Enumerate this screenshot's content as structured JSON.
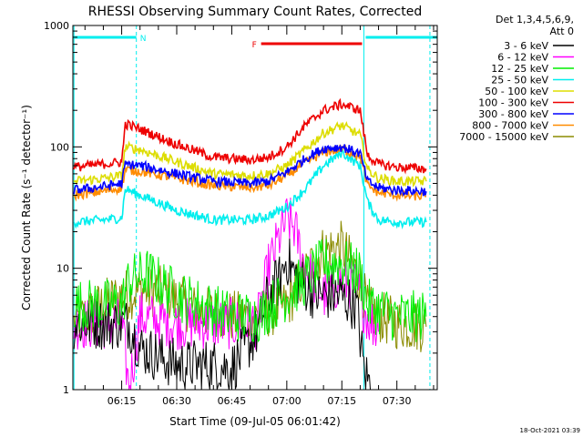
{
  "title": "RHESSI Observing Summary Count Rates, Corrected",
  "timestamp": "18-Oct-2021 03:39",
  "legend": {
    "header_line1": "Det 1,3,4,5,6,9,",
    "header_line2": "Att 0"
  },
  "colors": {
    "ch_3_6": "#000000",
    "ch_6_12": "#ff00ff",
    "ch_12_25": "#00ee00",
    "ch_25_50": "#00eeee",
    "ch_50_100": "#dddd00",
    "ch_100_300": "#ee0000",
    "ch_300_800": "#0000ff",
    "ch_800_7000": "#ff8c00",
    "ch_7000_15000": "#8b8b00",
    "flag_N": "#00eeee",
    "flag_F": "#ee0000"
  },
  "chart_data": {
    "type": "line",
    "title": "RHESSI Observing Summary Count Rates, Corrected",
    "xlabel": "Start Time (09-Jul-05 06:01:42)",
    "ylabel": "Corrected Count Rate (s⁻¹ detector⁻¹)",
    "yscale": "log",
    "ylim": [
      1,
      1000
    ],
    "xlim": [
      "06:01:42",
      "07:41:00"
    ],
    "x_ticks": [
      "06:15",
      "06:30",
      "06:45",
      "07:00",
      "07:15",
      "07:30"
    ],
    "y_ticks": [
      "1",
      "10",
      "100",
      "1000"
    ],
    "flags": [
      {
        "label": "N",
        "segments": [
          [
            "06:01:42",
            "06:19:00"
          ],
          [
            "07:21:30",
            "07:41:00"
          ]
        ]
      },
      {
        "label": "F",
        "segments": [
          [
            "06:53:00",
            "07:20:30"
          ]
        ]
      }
    ],
    "vertical_markers": [
      {
        "time": "06:19:00",
        "style": "dashed"
      },
      {
        "time": "07:21:00",
        "style": "solid"
      },
      {
        "time": "07:39:00",
        "style": "dashed"
      },
      {
        "time": "06:02:00",
        "style": "solid"
      }
    ],
    "series": [
      {
        "name": "3 - 6 keV",
        "color_key": "ch_3_6",
        "x": [
          "06:02",
          "06:10",
          "06:17",
          "06:20",
          "06:30",
          "06:40",
          "06:45",
          "06:52",
          "06:55",
          "06:58",
          "07:00",
          "07:03",
          "07:08",
          "07:14",
          "07:19",
          "07:21",
          "07:23"
        ],
        "y": [
          3.5,
          3.5,
          3.5,
          2.2,
          1.6,
          1.6,
          1.5,
          3,
          6,
          8,
          12,
          8,
          6,
          6,
          5,
          1.5,
          1
        ]
      },
      {
        "name": "6 - 12 keV",
        "color_key": "ch_6_12",
        "x": [
          "06:02",
          "06:15",
          "06:17",
          "06:20",
          "06:30",
          "06:45",
          "06:52",
          "06:55",
          "06:58",
          "07:00",
          "07:02",
          "07:05",
          "07:10",
          "07:15",
          "07:19",
          "07:22",
          "07:25"
        ],
        "y": [
          3.5,
          3.5,
          1,
          4,
          3.5,
          3.5,
          3.5,
          10,
          18,
          25,
          22,
          10,
          6,
          8,
          7,
          4,
          3
        ]
      },
      {
        "name": "12 - 25 keV",
        "color_key": "ch_12_25",
        "x": [
          "06:02",
          "06:15",
          "06:17",
          "06:22",
          "06:30",
          "06:45",
          "06:52",
          "06:56",
          "07:00",
          "07:05",
          "07:10",
          "07:15",
          "07:20",
          "07:22",
          "07:30",
          "07:38"
        ],
        "y": [
          5,
          5,
          8,
          9,
          6,
          4,
          4,
          5,
          6,
          8,
          11,
          11,
          9,
          5,
          4,
          4
        ]
      },
      {
        "name": "25 - 50 keV",
        "color_key": "ch_25_50",
        "x": [
          "06:02",
          "06:10",
          "06:15",
          "06:16",
          "06:20",
          "06:30",
          "06:40",
          "06:50",
          "06:55",
          "07:00",
          "07:05",
          "07:10",
          "07:15",
          "07:20",
          "07:22",
          "07:25",
          "07:30",
          "07:38"
        ],
        "y": [
          24,
          25,
          26,
          45,
          40,
          30,
          25,
          25,
          27,
          32,
          45,
          70,
          90,
          70,
          35,
          25,
          24,
          24
        ]
      },
      {
        "name": "50 - 100 keV",
        "color_key": "ch_50_100",
        "x": [
          "06:02",
          "06:10",
          "06:15",
          "06:16",
          "06:20",
          "06:30",
          "06:40",
          "06:50",
          "06:55",
          "07:00",
          "07:05",
          "07:10",
          "07:15",
          "07:20",
          "07:22",
          "07:25",
          "07:30",
          "07:38"
        ],
        "y": [
          52,
          55,
          58,
          100,
          95,
          75,
          60,
          58,
          60,
          70,
          95,
          130,
          150,
          125,
          65,
          55,
          52,
          52
        ]
      },
      {
        "name": "100 - 300 keV",
        "color_key": "ch_100_300",
        "x": [
          "06:02",
          "06:10",
          "06:15",
          "06:16",
          "06:20",
          "06:30",
          "06:40",
          "06:50",
          "06:55",
          "07:00",
          "07:05",
          "07:10",
          "07:15",
          "07:20",
          "07:22",
          "07:25",
          "07:30",
          "07:38"
        ],
        "y": [
          68,
          72,
          75,
          155,
          140,
          105,
          82,
          78,
          82,
          100,
          150,
          200,
          225,
          200,
          85,
          72,
          68,
          66
        ]
      },
      {
        "name": "300 - 800 keV",
        "color_key": "ch_300_800",
        "x": [
          "06:02",
          "06:10",
          "06:15",
          "06:16",
          "06:20",
          "06:30",
          "06:40",
          "06:50",
          "06:55",
          "07:00",
          "07:05",
          "07:10",
          "07:15",
          "07:20",
          "07:22",
          "07:25",
          "07:30",
          "07:38"
        ],
        "y": [
          44,
          47,
          50,
          72,
          70,
          60,
          52,
          50,
          52,
          62,
          80,
          97,
          100,
          88,
          52,
          46,
          44,
          43
        ]
      },
      {
        "name": "800 - 7000 keV",
        "color_key": "ch_800_7000",
        "x": [
          "06:02",
          "06:10",
          "06:15",
          "06:16",
          "06:20",
          "06:30",
          "06:40",
          "06:50",
          "06:55",
          "07:00",
          "07:05",
          "07:10",
          "07:15",
          "07:20",
          "07:22",
          "07:25",
          "07:30",
          "07:38"
        ],
        "y": [
          40,
          43,
          46,
          65,
          63,
          55,
          48,
          46,
          48,
          58,
          74,
          90,
          96,
          84,
          48,
          42,
          40,
          39
        ]
      },
      {
        "name": "7000 - 15000 keV",
        "color_key": "ch_7000_15000",
        "x": [
          "06:02",
          "06:10",
          "06:15",
          "06:20",
          "06:25",
          "06:30",
          "06:35",
          "06:45",
          "06:52",
          "06:56",
          "07:00",
          "07:05",
          "07:10",
          "07:15",
          "07:20",
          "07:22",
          "07:25",
          "07:30",
          "07:38"
        ],
        "y": [
          3.5,
          5,
          6,
          6.5,
          6.5,
          5.5,
          4.5,
          4,
          4,
          4.5,
          5,
          9,
          14,
          15,
          8,
          4.5,
          4,
          3.5,
          3.3
        ]
      }
    ]
  }
}
